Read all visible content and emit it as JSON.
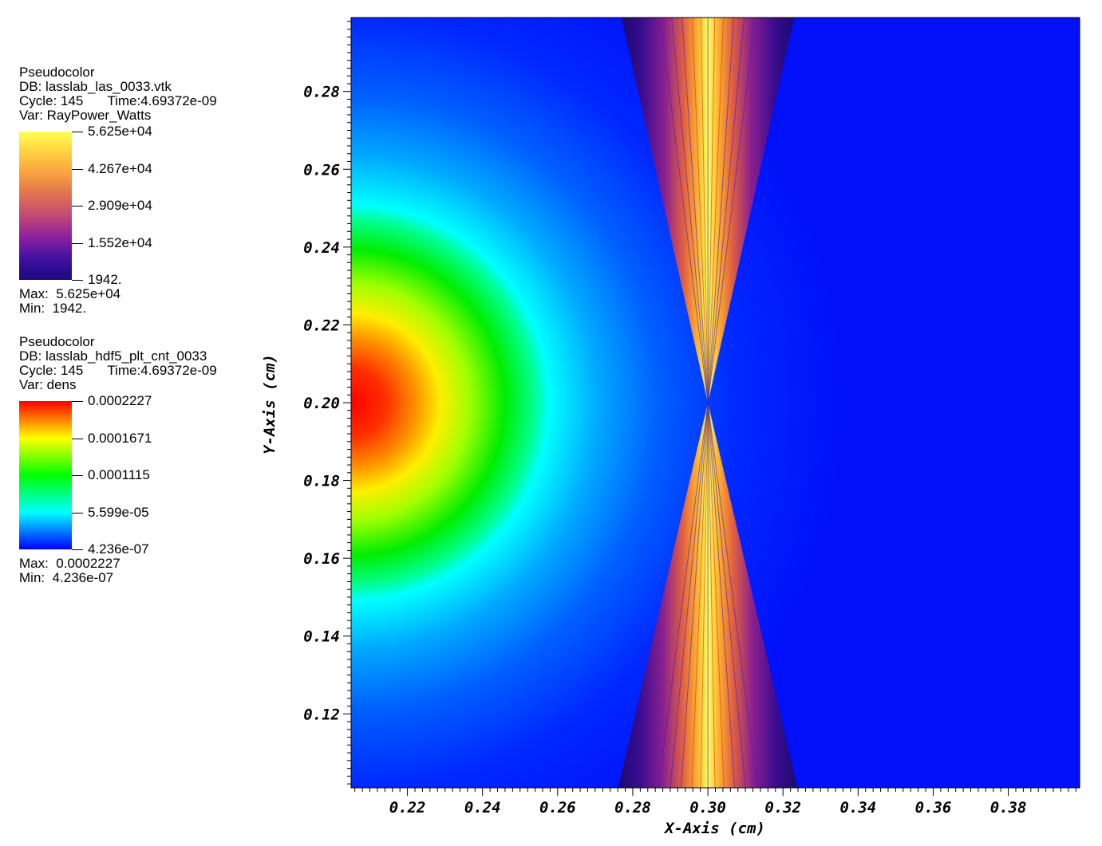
{
  "legends": [
    {
      "plot_type": "Pseudocolor",
      "db": "DB: lasslab_las_0033.vtk",
      "cycle": "Cycle: 145",
      "time": "Time:4.69372e-09",
      "var": "Var: RayPower_Watts",
      "colormap": "hot",
      "colors": [
        "#ffff50",
        "#ffd040",
        "#f8a040",
        "#e07050",
        "#c04878",
        "#8c20a0",
        "#4010a0",
        "#1a0a80"
      ],
      "ticks": [
        "5.625e+04",
        "4.267e+04",
        "2.909e+04",
        "1.552e+04",
        "1942."
      ],
      "max": "Max:  5.625e+04",
      "min": "Min:  1942."
    },
    {
      "plot_type": "Pseudocolor",
      "db": "DB: lasslab_hdf5_plt_cnt_0033",
      "cycle": "Cycle: 145",
      "time": "Time:4.69372e-09",
      "var": "Var: dens",
      "colormap": "rainbow",
      "colors": [
        "#ff0000",
        "#ff8000",
        "#ffff00",
        "#80ff00",
        "#00ff00",
        "#00ff80",
        "#00ffff",
        "#0080ff",
        "#0000ff"
      ],
      "ticks": [
        "0.0002227",
        "0.0001671",
        "0.0001115",
        "5.599e-05",
        "4.236e-07"
      ],
      "max": "Max:  0.0002227",
      "min": "Min:  4.236e-07"
    }
  ],
  "chart_data": {
    "type": "heatmap",
    "xlabel": "X-Axis (cm)",
    "ylabel": "Y-Axis (cm)",
    "xlim": [
      0.205,
      0.399
    ],
    "ylim": [
      0.101,
      0.299
    ],
    "xticks": [
      0.22,
      0.24,
      0.26,
      0.28,
      0.3,
      0.32,
      0.34,
      0.36,
      0.38
    ],
    "yticks": [
      0.12,
      0.14,
      0.16,
      0.18,
      0.2,
      0.22,
      0.24,
      0.26,
      0.28
    ],
    "xtick_labels": [
      "0.22",
      "0.24",
      "0.26",
      "0.28",
      "0.30",
      "0.32",
      "0.34",
      "0.36",
      "0.38"
    ],
    "ytick_labels": [
      "0.12",
      "0.14",
      "0.16",
      "0.18",
      "0.20",
      "0.22",
      "0.24",
      "0.26",
      "0.28"
    ],
    "layers": [
      {
        "var": "dens",
        "description_of_field": "radial density blob",
        "center": [
          0.205,
          0.2
        ],
        "max": 0.0002227,
        "min": 4.236e-07
      },
      {
        "var": "RayPower_Watts",
        "focus": [
          0.3,
          0.2
        ],
        "cone_half_width_at_edge": 0.023,
        "max": 56250,
        "min": 1942
      }
    ]
  }
}
